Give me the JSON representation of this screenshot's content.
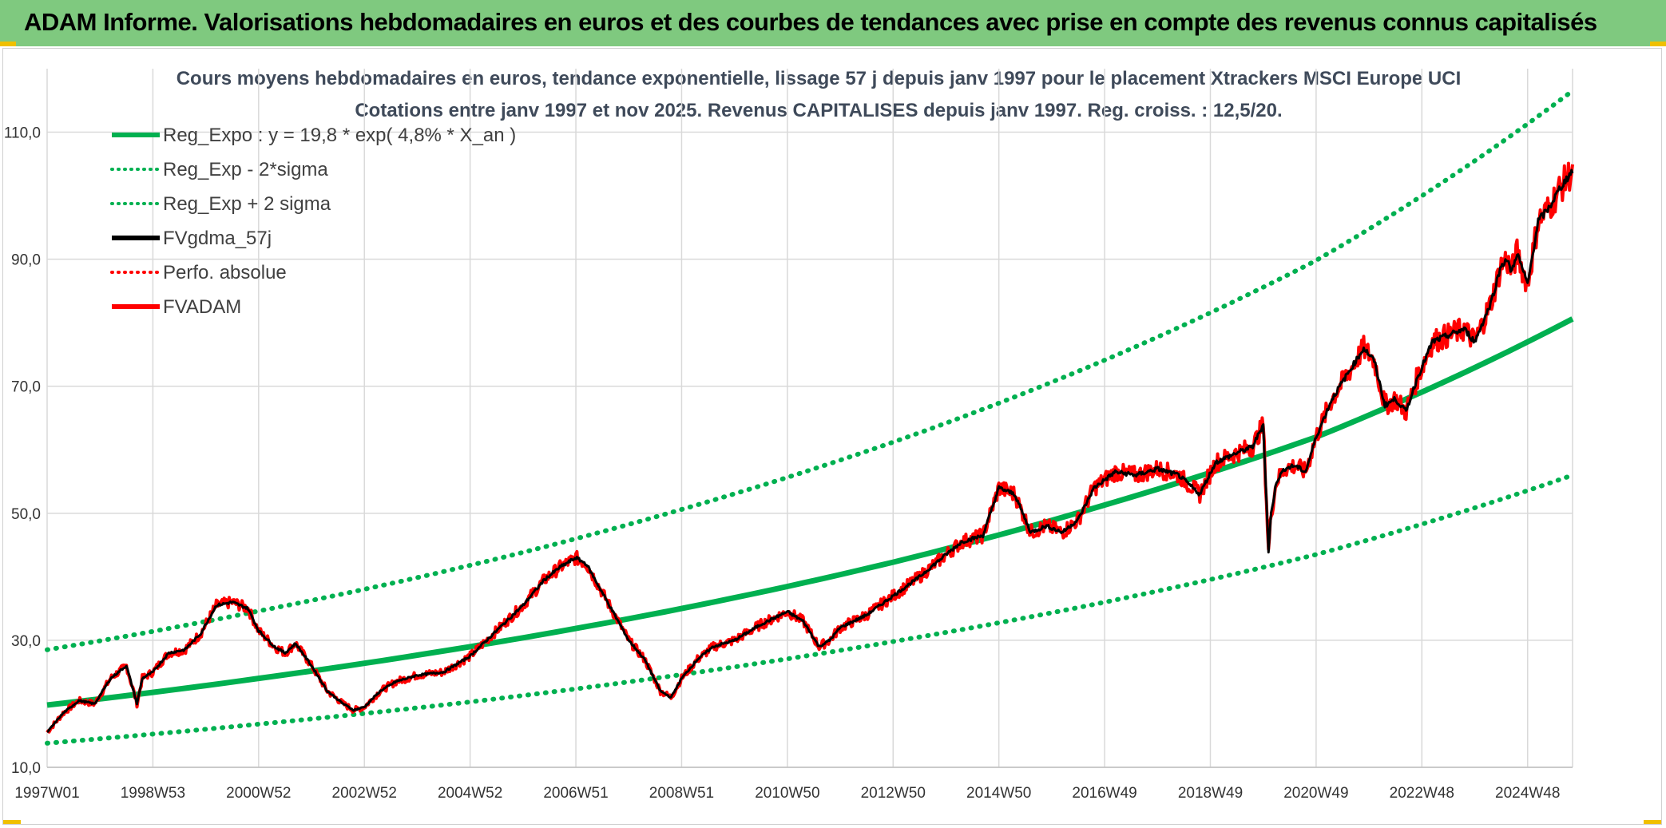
{
  "header": {
    "title": "ADAM Informe. Valorisations hebdomadaires en euros et des courbes de tendances avec prise en compte des revenus connus capitalisés"
  },
  "chart_data": {
    "type": "line",
    "title": "Cours moyens hebdomadaires en euros, tendance exponentielle, lissage 57 j depuis janv 1997 pour le placement Xtrackers MSCI Europe UCI",
    "subtitle": "Cotations entre janv 1997 et nov 2025. Revenus CAPITALISES depuis janv 1997. Reg. croiss. : 12,5/20.",
    "xlabel": "",
    "ylabel": "",
    "x_range": [
      1997.0,
      2025.85
    ],
    "ylim": [
      10,
      120
    ],
    "y_ticks": [
      10,
      30,
      50,
      70,
      90,
      110
    ],
    "y_tick_labels": [
      "10,0",
      "30,0",
      "50,0",
      "70,0",
      "90,0",
      "110,0"
    ],
    "x_ticks": [
      1997.0,
      1999.0,
      2001.0,
      2003.0,
      2005.0,
      2007.0,
      2009.0,
      2011.0,
      2013.0,
      2015.0,
      2017.0,
      2019.0,
      2021.0,
      2023.0,
      2025.0
    ],
    "x_tick_labels": [
      "1997W01",
      "1998W53",
      "2000W52",
      "2002W52",
      "2004W52",
      "2006W51",
      "2008W51",
      "2010W50",
      "2012W50",
      "2014W50",
      "2016W49",
      "2018W49",
      "2020W49",
      "2022W48",
      "2024W48"
    ],
    "grid": true,
    "legend_position": "top-left",
    "colors": {
      "trend": "#00b050",
      "smooth": "#000000",
      "price": "#ff0000",
      "grid": "#d9d9d9"
    },
    "legend": [
      {
        "label": "Reg_Expo : y = 19,8 * exp( 4,8% *  X_an )",
        "color": "#00b050",
        "style": "solid"
      },
      {
        "label": "Reg_Exp - 2*sigma",
        "color": "#00b050",
        "style": "dotted"
      },
      {
        "label": "Reg_Exp + 2 sigma",
        "color": "#00b050",
        "style": "dotted"
      },
      {
        "label": "FVgdma_57j",
        "color": "#000000",
        "style": "solid"
      },
      {
        "label": "Perfo. absolue",
        "color": "#ff0000",
        "style": "dotted"
      },
      {
        "label": "FVADAM",
        "color": "#ff0000",
        "style": "solid"
      }
    ],
    "series": [
      {
        "key": "reg_expo",
        "x": [
          1997.0,
          2001.0,
          2005.0,
          2009.0,
          2013.0,
          2017.0,
          2021.0,
          2025.85
        ],
        "y": [
          19.8,
          24.0,
          29.0,
          35.0,
          42.3,
          51.3,
          62.0,
          80.6
        ]
      },
      {
        "key": "reg_minus",
        "x": [
          1997.0,
          2001.0,
          2005.0,
          2009.0,
          2013.0,
          2017.0,
          2021.0,
          2025.85
        ],
        "y": [
          13.8,
          16.8,
          20.3,
          24.6,
          29.8,
          36.0,
          43.5,
          56.0
        ]
      },
      {
        "key": "reg_plus",
        "x": [
          1997.0,
          2001.0,
          2005.0,
          2009.0,
          2013.0,
          2017.0,
          2021.0,
          2025.85
        ],
        "y": [
          28.5,
          34.6,
          41.8,
          50.6,
          61.2,
          74.1,
          89.8,
          116.5
        ]
      },
      {
        "key": "price",
        "x": [
          1997.0,
          1997.3,
          1997.6,
          1997.9,
          1998.2,
          1998.5,
          1998.7,
          1998.8,
          1999.0,
          1999.3,
          1999.6,
          1999.9,
          2000.2,
          2000.5,
          2000.8,
          2001.0,
          2001.3,
          2001.5,
          2001.7,
          2002.0,
          2002.3,
          2002.6,
          2002.8,
          2003.0,
          2003.3,
          2003.6,
          2004.0,
          2004.5,
          2005.0,
          2005.5,
          2006.0,
          2006.4,
          2006.7,
          2007.0,
          2007.2,
          2007.5,
          2007.8,
          2008.0,
          2008.3,
          2008.6,
          2008.8,
          2009.0,
          2009.3,
          2009.6,
          2010.0,
          2010.5,
          2011.0,
          2011.3,
          2011.6,
          2011.8,
          2012.0,
          2012.5,
          2013.0,
          2013.5,
          2014.0,
          2014.3,
          2014.7,
          2015.0,
          2015.3,
          2015.6,
          2015.9,
          2016.2,
          2016.5,
          2016.8,
          2017.2,
          2017.6,
          2018.0,
          2018.4,
          2018.8,
          2019.1,
          2019.5,
          2019.8,
          2020.0,
          2020.1,
          2020.15,
          2020.25,
          2020.4,
          2020.6,
          2020.8,
          2021.0,
          2021.3,
          2021.6,
          2021.9,
          2022.1,
          2022.3,
          2022.5,
          2022.7,
          2022.9,
          2023.2,
          2023.5,
          2023.8,
          2024.0,
          2024.3,
          2024.5,
          2024.6,
          2024.7,
          2024.8,
          2025.0,
          2025.2,
          2025.4,
          2025.6,
          2025.85
        ],
        "y": [
          15.5,
          18.5,
          20.5,
          20.0,
          24.0,
          26.0,
          20.0,
          24.0,
          25.0,
          28.0,
          28.5,
          31.0,
          35.5,
          36.0,
          35.0,
          31.5,
          29.0,
          28.0,
          29.5,
          26.0,
          22.0,
          20.0,
          19.0,
          19.5,
          22.0,
          23.5,
          24.5,
          25.0,
          27.5,
          31.5,
          35.5,
          39.5,
          41.5,
          43.0,
          42.0,
          37.5,
          33.0,
          30.0,
          27.0,
          22.0,
          21.0,
          24.0,
          27.0,
          29.0,
          30.0,
          32.5,
          34.5,
          33.0,
          29.0,
          30.0,
          32.0,
          34.0,
          37.0,
          40.0,
          43.5,
          45.5,
          46.5,
          54.0,
          53.0,
          47.0,
          48.0,
          47.0,
          49.0,
          54.0,
          56.5,
          56.0,
          57.0,
          56.0,
          53.0,
          58.0,
          59.5,
          60.5,
          64.0,
          44.0,
          50.0,
          55.0,
          57.0,
          57.5,
          56.5,
          62.0,
          68.0,
          72.0,
          76.0,
          74.0,
          67.0,
          68.0,
          66.0,
          71.0,
          77.0,
          78.0,
          79.0,
          77.0,
          83.0,
          89.0,
          90.0,
          88.0,
          91.0,
          86.0,
          96.0,
          98.0,
          101.0,
          104.0
        ]
      }
    ]
  }
}
